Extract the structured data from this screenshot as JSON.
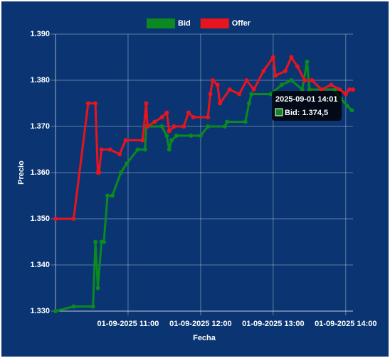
{
  "chart_data": {
    "type": "line",
    "xlabel": "Fecha",
    "ylabel": "Precio",
    "xlim": [
      "2025-09-01 10:00",
      "2025-09-01 14:06"
    ],
    "xticks": [
      {
        "value": "2025-09-01 11:00",
        "label": "01-09-2025 11:00"
      },
      {
        "value": "2025-09-01 12:00",
        "label": "01-09-2025 12:00"
      },
      {
        "value": "2025-09-01 13:00",
        "label": "01-09-2025 13:00"
      },
      {
        "value": "2025-09-01 14:00",
        "label": "01-09-2025 14:00"
      }
    ],
    "ylim": [
      1330,
      1390
    ],
    "yticks": [
      {
        "value": 1330,
        "label": "1.330"
      },
      {
        "value": 1340,
        "label": "1.340"
      },
      {
        "value": 1350,
        "label": "1.350"
      },
      {
        "value": 1360,
        "label": "1.360"
      },
      {
        "value": 1370,
        "label": "1.370"
      },
      {
        "value": 1380,
        "label": "1.380"
      },
      {
        "value": 1390,
        "label": "1.390"
      }
    ],
    "grid": true,
    "legend": "top",
    "series": [
      {
        "name": "Bid",
        "color": "#0a8a1f",
        "x": [
          "2025-09-01 10:00",
          "2025-09-01 10:15",
          "2025-09-01 10:31",
          "2025-09-01 10:33",
          "2025-09-01 10:35",
          "2025-09-01 10:38",
          "2025-09-01 10:40",
          "2025-09-01 10:43",
          "2025-09-01 10:47",
          "2025-09-01 10:54",
          "2025-09-01 10:59",
          "2025-09-01 11:08",
          "2025-09-01 11:14",
          "2025-09-01 11:15",
          "2025-09-01 11:28",
          "2025-09-01 11:32",
          "2025-09-01 11:34",
          "2025-09-01 11:36",
          "2025-09-01 11:40",
          "2025-09-01 11:52",
          "2025-09-01 12:00",
          "2025-09-01 12:06",
          "2025-09-01 12:20",
          "2025-09-01 12:22",
          "2025-09-01 12:37",
          "2025-09-01 12:40",
          "2025-09-01 12:42",
          "2025-09-01 12:58",
          "2025-09-01 13:07",
          "2025-09-01 13:15",
          "2025-09-01 13:24",
          "2025-09-01 13:28",
          "2025-09-01 13:30",
          "2025-09-01 13:51",
          "2025-09-01 13:56",
          "2025-09-01 14:01",
          "2025-09-01 14:05"
        ],
        "values": [
          1330,
          1331,
          1331,
          1345,
          1335,
          1345,
          1345,
          1355,
          1355,
          1360,
          1362,
          1365,
          1365,
          1370,
          1370,
          1368,
          1365,
          1367,
          1368,
          1368,
          1368,
          1370,
          1370,
          1371,
          1371,
          1375,
          1377,
          1377,
          1379,
          1380,
          1378,
          1384,
          1378,
          1378,
          1376,
          1374.5,
          1373.5
        ]
      },
      {
        "name": "Offer",
        "color": "#e8141e",
        "x": [
          "2025-09-01 10:00",
          "2025-09-01 10:15",
          "2025-09-01 10:27",
          "2025-09-01 10:33",
          "2025-09-01 10:35",
          "2025-09-01 10:36",
          "2025-09-01 10:38",
          "2025-09-01 10:45",
          "2025-09-01 10:53",
          "2025-09-01 10:58",
          "2025-09-01 11:12",
          "2025-09-01 11:15",
          "2025-09-01 11:16",
          "2025-09-01 11:22",
          "2025-09-01 11:28",
          "2025-09-01 11:32",
          "2025-09-01 11:34",
          "2025-09-01 11:38",
          "2025-09-01 11:46",
          "2025-09-01 11:50",
          "2025-09-01 11:54",
          "2025-09-01 12:06",
          "2025-09-01 12:08",
          "2025-09-01 12:10",
          "2025-09-01 12:14",
          "2025-09-01 12:16",
          "2025-09-01 12:24",
          "2025-09-01 12:32",
          "2025-09-01 12:38",
          "2025-09-01 12:44",
          "2025-09-01 12:52",
          "2025-09-01 13:00",
          "2025-09-01 13:02",
          "2025-09-01 13:10",
          "2025-09-01 13:15",
          "2025-09-01 13:20",
          "2025-09-01 13:26",
          "2025-09-01 13:32",
          "2025-09-01 13:40",
          "2025-09-01 13:48",
          "2025-09-01 13:55",
          "2025-09-01 14:00",
          "2025-09-01 14:03",
          "2025-09-01 14:06"
        ],
        "values": [
          1350,
          1350,
          1375,
          1375,
          1360,
          1360,
          1365,
          1365,
          1364,
          1367,
          1367,
          1375,
          1370,
          1371,
          1372,
          1373,
          1369,
          1370,
          1370,
          1373,
          1372,
          1372,
          1377,
          1380,
          1379,
          1375,
          1378,
          1377,
          1380,
          1378,
          1382,
          1385,
          1381,
          1382,
          1385,
          1383,
          1380,
          1380,
          1378,
          1379,
          1378,
          1377,
          1378,
          1378
        ]
      }
    ],
    "tooltip": {
      "title": "2025-09-01 14:01",
      "label": "Bid: 1.374,5"
    }
  }
}
